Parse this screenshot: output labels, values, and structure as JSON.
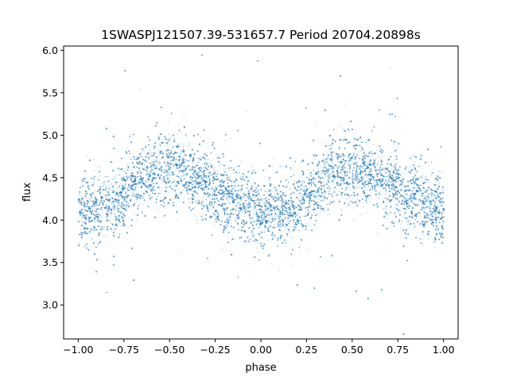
{
  "chart_data": {
    "type": "scatter",
    "title": "1SWASPJ121507.39-531657.7 Period 20704.20898s",
    "xlabel": "phase",
    "ylabel": "flux",
    "xlim": [
      -1.08,
      1.08
    ],
    "ylim": [
      2.6,
      6.05
    ],
    "xticks": [
      -1.0,
      -0.75,
      -0.5,
      -0.25,
      0.0,
      0.25,
      0.5,
      0.75,
      1.0
    ],
    "xtick_labels": [
      "−1.00",
      "−0.75",
      "−0.50",
      "−0.25",
      "0.00",
      "0.25",
      "0.50",
      "0.75",
      "1.00"
    ],
    "yticks": [
      3.0,
      3.5,
      4.0,
      4.5,
      5.0,
      5.5,
      6.0
    ],
    "ytick_labels": [
      "3.0",
      "3.5",
      "4.0",
      "4.5",
      "5.0",
      "5.5",
      "6.0"
    ],
    "grid": false,
    "point_color": "#1f77b4",
    "series": [
      {
        "x_range": [
          -1.0,
          1.0
        ],
        "mean_curve": {
          "phase": [
            -1.0,
            -0.9,
            -0.8,
            -0.7,
            -0.6,
            -0.5,
            -0.4,
            -0.3,
            -0.2,
            -0.1,
            0.0,
            0.1,
            0.2,
            0.3,
            0.4,
            0.5,
            0.6,
            0.7,
            0.8,
            0.9,
            1.0
          ],
          "flux": [
            4.1,
            4.12,
            4.2,
            4.45,
            4.6,
            4.62,
            4.55,
            4.42,
            4.28,
            4.18,
            4.1,
            4.08,
            4.16,
            4.38,
            4.58,
            4.62,
            4.56,
            4.44,
            4.3,
            4.18,
            4.1
          ]
        },
        "scatter_sigma": 0.2,
        "point_count": 26000
      }
    ]
  }
}
